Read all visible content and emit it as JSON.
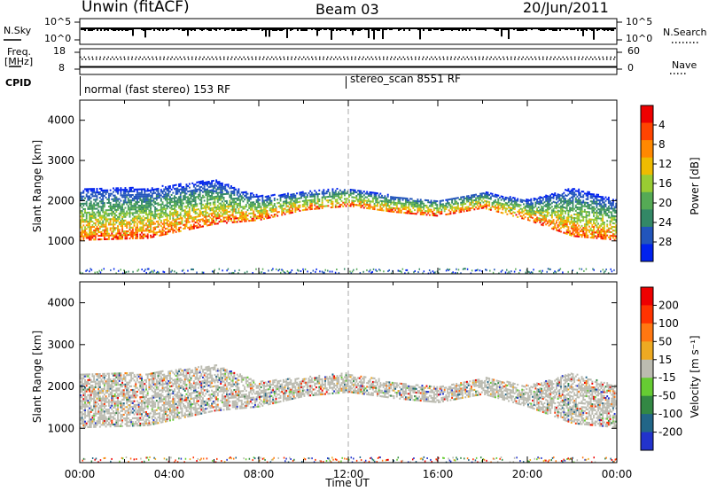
{
  "header": {
    "station": "Unwin (fitACF)",
    "beam": "Beam 03",
    "date": "20/Jun/2011"
  },
  "top_panels": {
    "nsky_label": "N.Sky",
    "nsky_ticks": [
      "10^5",
      "10^0"
    ],
    "nsearch_label": "N.Search",
    "nsearch_ticks": [
      "10^5",
      "10^0"
    ],
    "freq_label_line1": "Freq.",
    "freq_label_line2": "[MHz]",
    "freq_ticks": [
      "18",
      "8"
    ],
    "nave_label": "Nave",
    "nave_ticks": [
      "60",
      "0"
    ],
    "cpid_label": "CPID",
    "cpid_segments": [
      "normal (fast stereo) 153 RF",
      "stereo_scan 8551 RF"
    ]
  },
  "colors": {
    "power_scale": [
      "#0022ee",
      "#2255bb",
      "#338866",
      "#55aa55",
      "#99cc33",
      "#eebb00",
      "#ff8800",
      "#ff4400",
      "#ee0000"
    ],
    "velocity_scale": [
      "#2233cc",
      "#226688",
      "#338844",
      "#66cc33",
      "#bbbbb0",
      "#eeaa22",
      "#ff7711",
      "#ff3300",
      "#ee0000"
    ]
  },
  "chart_data": [
    {
      "type": "heatmap",
      "title": "Power",
      "xlabel": "",
      "ylabel": "Slant Range [km]",
      "ylim": [
        180,
        4500
      ],
      "yticks": [
        "1000",
        "2000",
        "3000",
        "4000"
      ],
      "xlim": [
        "00:00",
        "24:00"
      ],
      "colorbar": {
        "label": "Power [dB]",
        "ticks": [
          "4",
          "8",
          "12",
          "16",
          "20",
          "24",
          "28"
        ],
        "range": [
          0,
          32
        ]
      },
      "echo_bands": [
        {
          "time": "00:00",
          "range_low": 1000,
          "range_high": 2300
        },
        {
          "time": "03:00",
          "range_low": 1050,
          "range_high": 2300
        },
        {
          "time": "06:00",
          "range_low": 1400,
          "range_high": 2500
        },
        {
          "time": "08:00",
          "range_low": 1500,
          "range_high": 2100
        },
        {
          "time": "10:00",
          "range_low": 1750,
          "range_high": 2200
        },
        {
          "time": "12:00",
          "range_low": 1850,
          "range_high": 2300
        },
        {
          "time": "14:00",
          "range_low": 1700,
          "range_high": 2100
        },
        {
          "time": "16:00",
          "range_low": 1600,
          "range_high": 2000
        },
        {
          "time": "18:00",
          "range_low": 1800,
          "range_high": 2200
        },
        {
          "time": "20:00",
          "range_low": 1500,
          "range_high": 2000
        },
        {
          "time": "22:00",
          "range_low": 1100,
          "range_high": 2300
        },
        {
          "time": "24:00",
          "range_low": 1000,
          "range_high": 2000
        }
      ]
    },
    {
      "type": "heatmap",
      "title": "Velocity",
      "xlabel": "Time UT",
      "ylabel": "Slant Range [km]",
      "ylim": [
        180,
        4500
      ],
      "yticks": [
        "1000",
        "2000",
        "3000",
        "4000"
      ],
      "xticks": [
        "00:00",
        "04:00",
        "08:00",
        "12:00",
        "16:00",
        "20:00",
        "00:00"
      ],
      "xlim": [
        "00:00",
        "24:00"
      ],
      "colorbar": {
        "label": "Velocity [m s⁻¹]",
        "ticks": [
          "200",
          "100",
          "50",
          "15",
          "-15",
          "-50",
          "-100",
          "-200"
        ],
        "range": [
          -300,
          300
        ]
      }
    }
  ]
}
